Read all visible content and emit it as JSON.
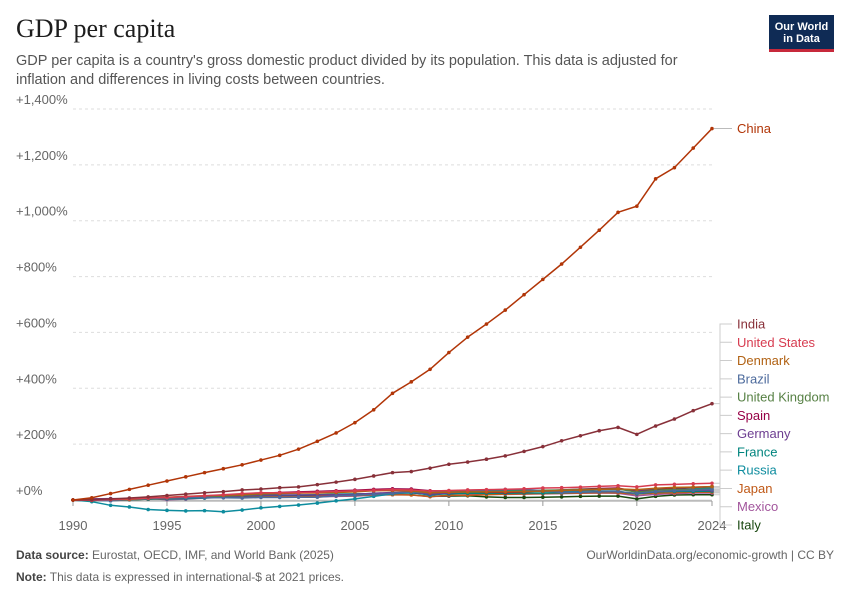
{
  "header": {
    "title": "GDP per capita",
    "subtitle": "GDP per capita is a country's gross domestic product divided by its population. This data is adjusted for inflation and differences in living costs between countries.",
    "logo_line1": "Our World",
    "logo_line2": "in Data"
  },
  "footer": {
    "source_label": "Data source:",
    "source_text": "Eurostat, OECD, IMF, and World Bank (2025)",
    "note_label": "Note:",
    "note_text": "This data is expressed in international-$ at 2021 prices.",
    "credit": "OurWorldinData.org/economic-growth | CC BY"
  },
  "chart_data": {
    "type": "line",
    "title": "GDP per capita",
    "ylim": [
      0,
      1400
    ],
    "xlim": [
      1990,
      2024
    ],
    "yticks": [
      0,
      200,
      400,
      600,
      800,
      1000,
      1200,
      1400
    ],
    "ytick_labels": [
      "+0%",
      "+200%",
      "+400%",
      "+600%",
      "+800%",
      "+1,000%",
      "+1,200%",
      "+1,400%"
    ],
    "xticks": [
      1990,
      1995,
      2000,
      2005,
      2010,
      2015,
      2020,
      2024
    ],
    "xtick_labels": [
      "1990",
      "1995",
      "2000",
      "2005",
      "2010",
      "2015",
      "2020",
      "2024"
    ],
    "grid": "horizontal dashed",
    "legend": "right, inline labels",
    "x": [
      1990,
      1991,
      1992,
      1993,
      1994,
      1995,
      1996,
      1997,
      1998,
      1999,
      2000,
      2001,
      2002,
      2003,
      2004,
      2005,
      2006,
      2007,
      2008,
      2009,
      2010,
      2011,
      2012,
      2013,
      2014,
      2015,
      2016,
      2017,
      2018,
      2019,
      2020,
      2021,
      2022,
      2023,
      2024
    ],
    "series": [
      {
        "name": "China",
        "color": "#b13507",
        "values": [
          0,
          8,
          23,
          38,
          53,
          68,
          83,
          98,
          112,
          126,
          143,
          160,
          182,
          210,
          240,
          277,
          323,
          382,
          423,
          468,
          528,
          583,
          630,
          680,
          735,
          790,
          845,
          905,
          966,
          1030,
          1052,
          1150,
          1190,
          1260,
          1330
        ]
      },
      {
        "name": "India",
        "color": "#883039",
        "values": [
          0,
          1,
          4,
          7,
          11,
          16,
          21,
          26,
          30,
          36,
          39,
          44,
          47,
          55,
          64,
          74,
          86,
          98,
          102,
          114,
          128,
          136,
          146,
          158,
          174,
          191,
          212,
          230,
          248,
          260,
          235,
          265,
          290,
          320,
          345
        ]
      },
      {
        "name": "United States",
        "color": "#d73c50",
        "values": [
          0,
          -1,
          2,
          4,
          7,
          9,
          12,
          15,
          19,
          23,
          26,
          26,
          27,
          28,
          31,
          33,
          35,
          37,
          36,
          32,
          34,
          36,
          37,
          38,
          40,
          43,
          44,
          46,
          49,
          51,
          47,
          54,
          56,
          58,
          60
        ]
      },
      {
        "name": "Denmark",
        "color": "#b16214",
        "values": [
          0,
          1,
          2,
          2,
          7,
          10,
          13,
          15,
          17,
          19,
          23,
          24,
          25,
          25,
          27,
          29,
          33,
          34,
          32,
          26,
          28,
          29,
          29,
          29,
          30,
          32,
          34,
          36,
          38,
          40,
          37,
          42,
          45,
          46,
          48
        ]
      },
      {
        "name": "Brazil",
        "color": "#4c6a9c",
        "values": [
          0,
          -1,
          -3,
          1,
          5,
          7,
          8,
          9,
          8,
          7,
          9,
          9,
          10,
          10,
          15,
          17,
          20,
          24,
          28,
          26,
          32,
          35,
          36,
          38,
          38,
          33,
          27,
          28,
          29,
          30,
          24,
          30,
          33,
          35,
          38
        ]
      },
      {
        "name": "United Kingdom",
        "color": "#578145",
        "values": [
          0,
          -2,
          -2,
          0,
          4,
          6,
          8,
          11,
          14,
          17,
          21,
          23,
          25,
          28,
          30,
          32,
          34,
          36,
          34,
          27,
          28,
          29,
          30,
          31,
          33,
          35,
          36,
          38,
          39,
          40,
          28,
          35,
          38,
          38,
          39
        ]
      },
      {
        "name": "Spain",
        "color": "#970046",
        "values": [
          0,
          2,
          3,
          2,
          4,
          6,
          8,
          11,
          15,
          19,
          24,
          27,
          29,
          31,
          33,
          35,
          38,
          40,
          39,
          33,
          32,
          31,
          28,
          27,
          29,
          33,
          36,
          39,
          41,
          43,
          29,
          36,
          42,
          45,
          48
        ]
      },
      {
        "name": "Germany",
        "color": "#6d3e91",
        "values": [
          0,
          4,
          5,
          4,
          6,
          8,
          8,
          10,
          12,
          14,
          17,
          18,
          18,
          18,
          19,
          20,
          24,
          27,
          28,
          21,
          25,
          30,
          30,
          30,
          31,
          32,
          34,
          36,
          37,
          38,
          33,
          36,
          37,
          35,
          35
        ]
      },
      {
        "name": "France",
        "color": "#00847e",
        "values": [
          0,
          1,
          2,
          1,
          3,
          4,
          5,
          7,
          10,
          13,
          16,
          17,
          18,
          19,
          21,
          22,
          23,
          25,
          25,
          21,
          22,
          24,
          24,
          24,
          25,
          25,
          26,
          28,
          30,
          31,
          22,
          29,
          31,
          31,
          32
        ]
      },
      {
        "name": "Russia",
        "color": "#0d8c9e",
        "values": [
          0,
          -6,
          -19,
          -25,
          -34,
          -37,
          -39,
          -38,
          -42,
          -36,
          -28,
          -23,
          -18,
          -11,
          -3,
          4,
          13,
          22,
          28,
          17,
          24,
          29,
          34,
          35,
          34,
          31,
          31,
          33,
          36,
          38,
          34,
          40,
          37,
          40,
          44
        ]
      },
      {
        "name": "Japan",
        "color": "#c05917",
        "values": [
          0,
          3,
          4,
          4,
          5,
          7,
          10,
          11,
          9,
          9,
          11,
          11,
          11,
          13,
          15,
          16,
          18,
          19,
          18,
          12,
          17,
          17,
          19,
          21,
          22,
          23,
          24,
          25,
          26,
          26,
          21,
          25,
          26,
          28,
          28
        ]
      },
      {
        "name": "Mexico",
        "color": "#a2559c",
        "values": [
          0,
          2,
          4,
          4,
          6,
          1,
          3,
          7,
          9,
          10,
          13,
          12,
          11,
          11,
          13,
          14,
          18,
          19,
          19,
          12,
          16,
          19,
          20,
          20,
          21,
          22,
          23,
          24,
          25,
          24,
          15,
          20,
          23,
          25,
          25
        ]
      },
      {
        "name": "Italy",
        "color": "#18470f",
        "values": [
          0,
          1,
          2,
          1,
          3,
          6,
          7,
          8,
          10,
          11,
          14,
          16,
          17,
          17,
          17,
          18,
          20,
          21,
          19,
          13,
          14,
          15,
          11,
          9,
          9,
          10,
          11,
          13,
          14,
          14,
          4,
          13,
          18,
          19,
          19
        ]
      }
    ],
    "label_order": [
      "China",
      "India",
      "United States",
      "Denmark",
      "Brazil",
      "United Kingdom",
      "Spain",
      "Germany",
      "France",
      "Russia",
      "Japan",
      "Mexico",
      "Italy"
    ]
  }
}
